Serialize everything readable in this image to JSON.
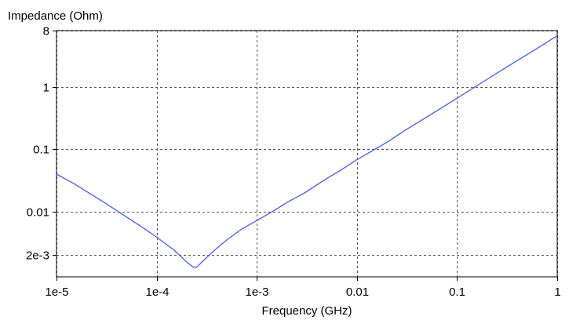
{
  "chart_data": {
    "type": "line",
    "title": "",
    "xlabel": "Frequency (GHz)",
    "ylabel": "Impedance (Ohm)",
    "x_scale": "log",
    "y_scale": "log",
    "xlim": [
      1e-05,
      1
    ],
    "ylim": [
      0.0009,
      8
    ],
    "x_ticks": [
      {
        "value": 1e-05,
        "label": "1e-5"
      },
      {
        "value": 0.0001,
        "label": "1e-4"
      },
      {
        "value": 0.001,
        "label": "1e-3"
      },
      {
        "value": 0.01,
        "label": "0.01"
      },
      {
        "value": 0.1,
        "label": "0.1"
      },
      {
        "value": 1,
        "label": "1"
      }
    ],
    "y_ticks": [
      {
        "value": 8,
        "label": "8"
      },
      {
        "value": 1,
        "label": "1"
      },
      {
        "value": 0.1,
        "label": "0.1"
      },
      {
        "value": 0.01,
        "label": "0.01"
      },
      {
        "value": 0.002,
        "label": "2e-3"
      }
    ],
    "grid": true,
    "grid_style": "dashed",
    "legend": "none",
    "colors": {
      "series": "#4a5cf0",
      "grid": "#555555",
      "axis": "#000000",
      "background": "#ffffff"
    },
    "series": [
      {
        "x": [
          1e-05,
          1.5e-05,
          2e-05,
          3e-05,
          5e-05,
          7e-05,
          0.0001,
          0.00015,
          0.0002,
          0.00023,
          0.00025,
          0.0003,
          0.0004,
          0.0005,
          0.0007,
          0.001,
          0.0015,
          0.002,
          0.003,
          0.005,
          0.007,
          0.01,
          0.02,
          0.03,
          0.05,
          0.1,
          0.2,
          0.3,
          0.5,
          0.7,
          1
        ],
        "y": [
          0.04,
          0.028,
          0.021,
          0.014,
          0.0082,
          0.0058,
          0.0039,
          0.0024,
          0.00155,
          0.0013,
          0.00128,
          0.0017,
          0.0026,
          0.0035,
          0.0052,
          0.0072,
          0.0105,
          0.014,
          0.02,
          0.034,
          0.047,
          0.068,
          0.13,
          0.2,
          0.33,
          0.66,
          1.33,
          2.0,
          3.3,
          4.6,
          6.6
        ]
      }
    ]
  }
}
